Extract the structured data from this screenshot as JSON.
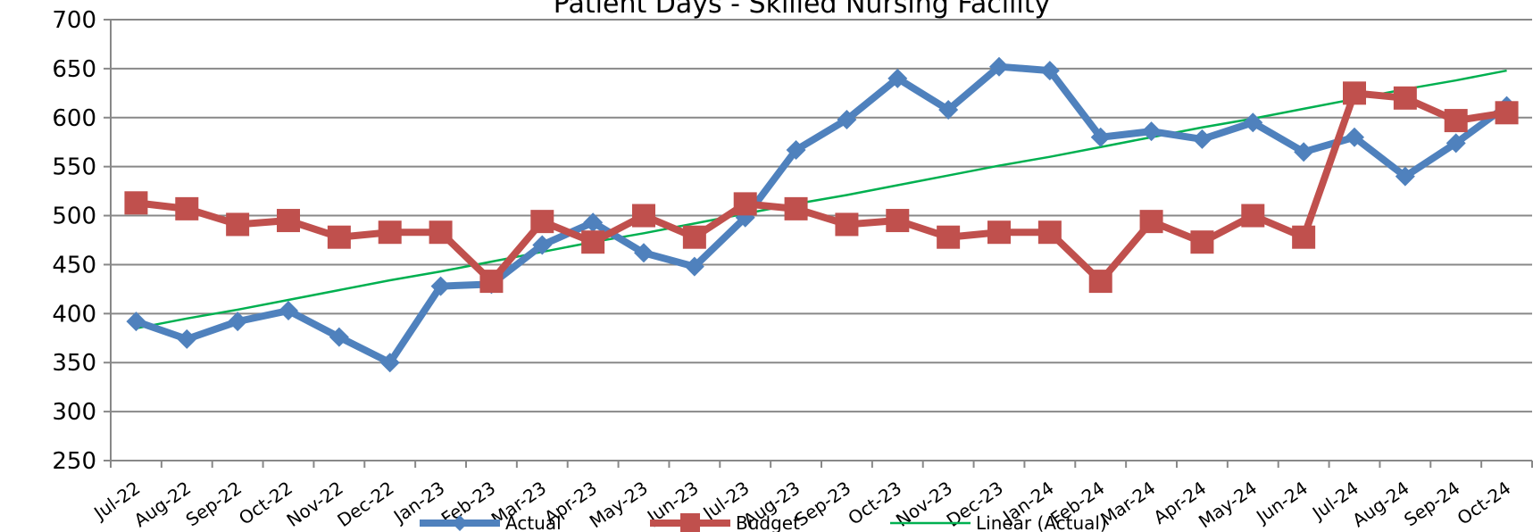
{
  "chart_data": {
    "type": "line",
    "title": "Patient Days - Skilled Nursing Facility",
    "categories": [
      "Jul-22",
      "Aug-22",
      "Sep-22",
      "Oct-22",
      "Nov-22",
      "Dec-22",
      "Jan-23",
      "Feb-23",
      "Mar-23",
      "Apr-23",
      "May-23",
      "Jun-23",
      "Jul-23",
      "Aug-23",
      "Sep-23",
      "Oct-23",
      "Nov-23",
      "Dec-23",
      "Jan-24",
      "Feb-24",
      "Mar-24",
      "Apr-24",
      "May-24",
      "Jun-24",
      "Jul-24",
      "Aug-24",
      "Sep-24",
      "Oct-24"
    ],
    "series": [
      {
        "name": "Actual",
        "color": "#4f81bd",
        "marker": "diamond",
        "values": [
          392,
          374,
          392,
          403,
          376,
          350,
          428,
          430,
          470,
          493,
          462,
          448,
          498,
          567,
          598,
          640,
          608,
          652,
          648,
          580,
          586,
          578,
          595,
          565,
          580,
          540,
          574,
          612
        ]
      },
      {
        "name": "Budget",
        "color": "#c0504d",
        "marker": "square",
        "values": [
          513,
          507,
          491,
          495,
          478,
          483,
          483,
          433,
          494,
          473,
          500,
          478,
          512,
          507,
          491,
          495,
          478,
          483,
          483,
          433,
          494,
          473,
          500,
          478,
          625,
          620,
          597,
          605
        ]
      },
      {
        "name": "Linear (Actual)",
        "color": "#00b050",
        "marker": "none",
        "values": [
          385,
          395,
          404,
          414,
          424,
          434,
          443,
          453,
          463,
          473,
          482,
          492,
          502,
          512,
          521,
          531,
          541,
          551,
          560,
          570,
          580,
          590,
          599,
          609,
          619,
          629,
          638,
          648
        ]
      }
    ],
    "ylim": [
      250,
      700
    ],
    "yticks": [
      250,
      300,
      350,
      400,
      450,
      500,
      550,
      600,
      650,
      700
    ],
    "grid": true,
    "legend": "bottom"
  }
}
